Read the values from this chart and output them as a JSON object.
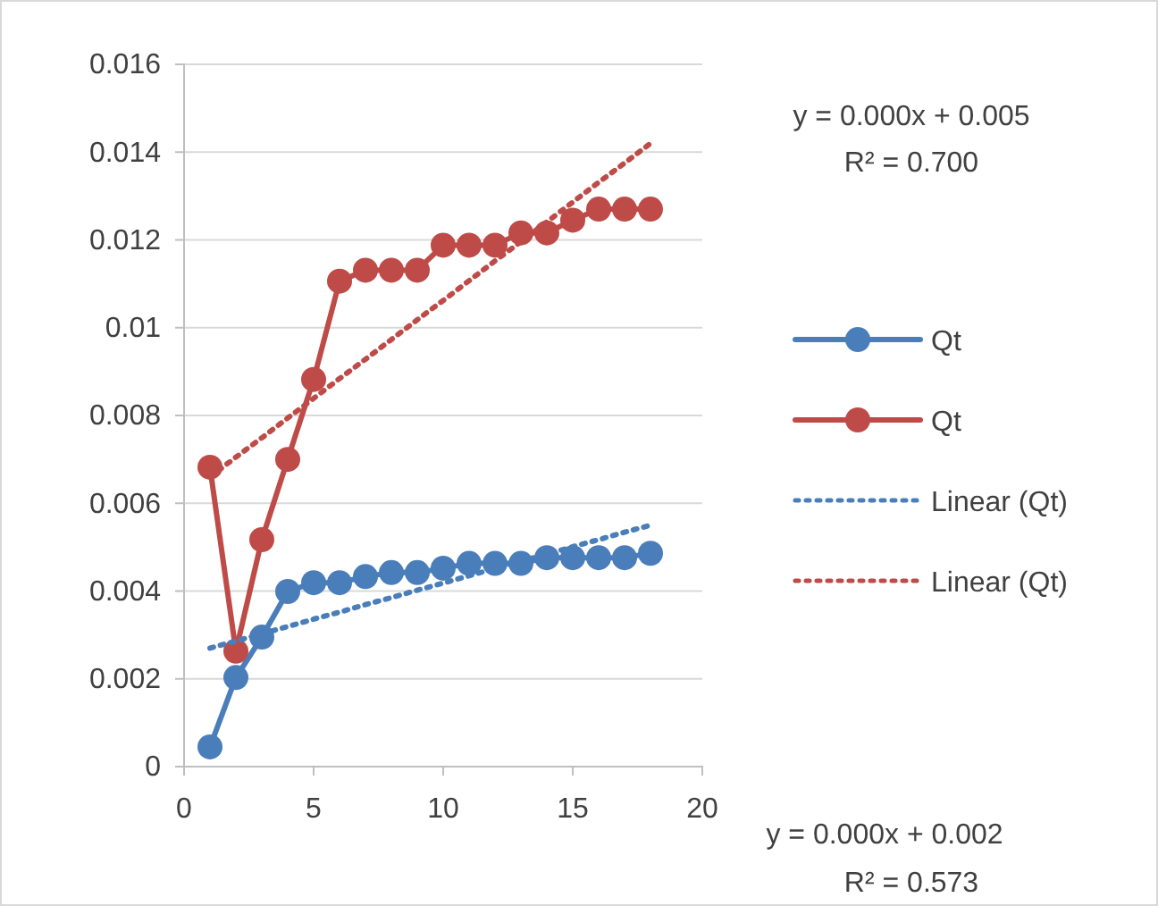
{
  "chart_data": {
    "type": "line",
    "x": [
      1,
      2,
      3,
      4,
      5,
      6,
      7,
      8,
      9,
      10,
      11,
      12,
      13,
      14,
      15,
      16,
      17,
      18
    ],
    "series": [
      {
        "name": "Qt",
        "color": "#4a7ebb",
        "marker": "circle",
        "line_style": "solid",
        "values": [
          0.00045,
          0.00203,
          0.00295,
          0.00399,
          0.00419,
          0.00419,
          0.00433,
          0.00442,
          0.00442,
          0.00452,
          0.00463,
          0.00463,
          0.00463,
          0.00476,
          0.00476,
          0.00476,
          0.00476,
          0.00486
        ]
      },
      {
        "name": "Qt",
        "color": "#be4b48",
        "marker": "circle",
        "line_style": "solid",
        "values": [
          0.00682,
          0.00263,
          0.00517,
          0.007,
          0.00882,
          0.01106,
          0.01131,
          0.01131,
          0.01131,
          0.01188,
          0.01188,
          0.01188,
          0.01216,
          0.01216,
          0.01245,
          0.0127,
          0.0127,
          0.0127
        ]
      },
      {
        "name": "Linear (Qt)",
        "type": "line",
        "color": "#4a7ebb",
        "marker": "none",
        "line_style": "dotted",
        "values": [
          0.0027,
          0.00286,
          0.00303,
          0.00319,
          0.00336,
          0.00352,
          0.00369,
          0.00385,
          0.00402,
          0.00418,
          0.00435,
          0.00451,
          0.00468,
          0.00484,
          0.00501,
          0.00517,
          0.00534,
          0.0055
        ]
      },
      {
        "name": "Linear (Qt)",
        "type": "line",
        "color": "#be4b48",
        "marker": "none",
        "line_style": "dotted",
        "values": [
          0.0066,
          0.00705,
          0.00749,
          0.00794,
          0.00839,
          0.00884,
          0.00928,
          0.00973,
          0.01018,
          0.01062,
          0.01107,
          0.01152,
          0.01196,
          0.01241,
          0.01286,
          0.01331,
          0.01375,
          0.0142
        ]
      }
    ],
    "xlim": [
      0,
      20
    ],
    "xticks": [
      0,
      5,
      10,
      15,
      20
    ],
    "ylim": [
      0,
      0.016
    ],
    "yticks": [
      0,
      0.002,
      0.004,
      0.006,
      0.008,
      0.01,
      0.012,
      0.014,
      0.016
    ],
    "grid": "y",
    "legend": "right",
    "annotations": [
      "y = 0.000x + 0.005",
      "R² = 0.700",
      "y = 0.000x + 0.002",
      "R² = 0.573"
    ]
  }
}
